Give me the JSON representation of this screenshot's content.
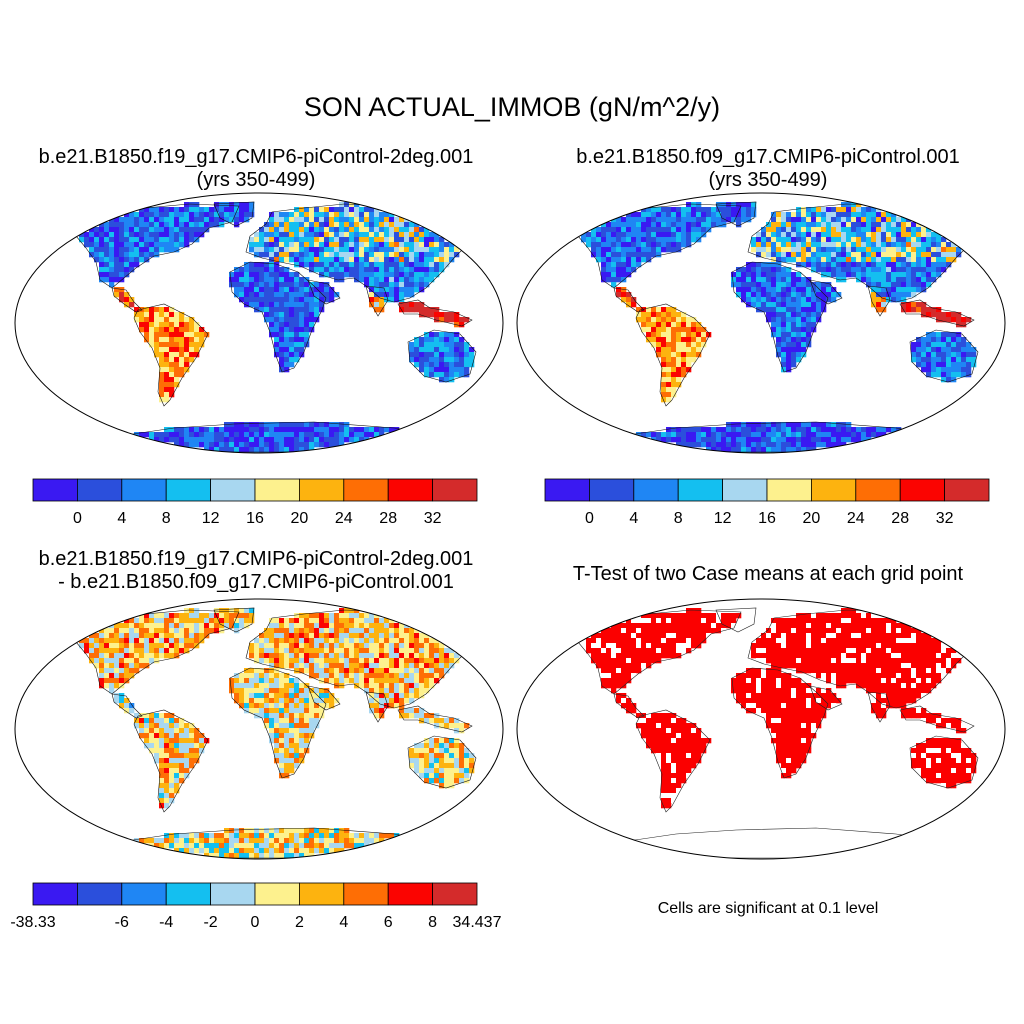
{
  "figure": {
    "title": "SON ACTUAL_IMMOB (gN/m^2/y)"
  },
  "panels": [
    {
      "id": "case1",
      "title_line1": "b.e21.B1850.f19_g17.CMIP6-piControl-2deg.001",
      "title_line2": "(yrs 350-499)"
    },
    {
      "id": "case2",
      "title_line1": "b.e21.B1850.f09_g17.CMIP6-piControl.001",
      "title_line2": "(yrs 350-499)"
    },
    {
      "id": "diff",
      "title_line1": "b.e21.B1850.f19_g17.CMIP6-piControl-2deg.001",
      "title_line2": "- b.e21.B1850.f09_g17.CMIP6-piControl.001"
    },
    {
      "id": "ttest",
      "title_line1": "T-Test of two Case means at each grid point",
      "note": "Cells are significant at 0.1 level"
    }
  ],
  "colorbars": {
    "main": {
      "colors": [
        "#3a19f2",
        "#2b4fdc",
        "#1f86f4",
        "#14bff0",
        "#a8d7f0",
        "#fdf18e",
        "#fdb30f",
        "#fe6e05",
        "#fb0401",
        "#d42b2b"
      ],
      "labels": [
        "0",
        "4",
        "8",
        "12",
        "16",
        "20",
        "24",
        "28",
        "32"
      ]
    },
    "diff": {
      "colors": [
        "#3a19f2",
        "#2b4fdc",
        "#1f86f4",
        "#14bff0",
        "#a8d7f0",
        "#fdf18e",
        "#fdb30f",
        "#fe6e05",
        "#fb0401",
        "#d42b2b"
      ],
      "labels": [
        "-38.33",
        "-6",
        "-4",
        "-2",
        "0",
        "2",
        "4",
        "6",
        "8",
        "34.437"
      ]
    },
    "significance_color": "#fb0000"
  }
}
